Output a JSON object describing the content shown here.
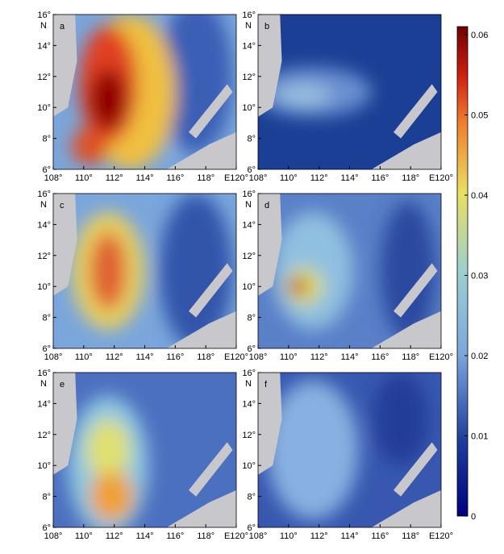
{
  "panels": [
    {
      "label": "a"
    },
    {
      "label": "b"
    },
    {
      "label": "c"
    },
    {
      "label": "d"
    },
    {
      "label": "e"
    },
    {
      "label": "f"
    }
  ],
  "x_ticks": [
    "108°",
    "110°",
    "112°",
    "114°",
    "116°",
    "118°",
    "E120°"
  ],
  "y_ticks": [
    "6°",
    "8°",
    "10°",
    "12°",
    "14°",
    "16°"
  ],
  "y_unit": "N",
  "colorbar": {
    "lim": [
      0,
      0.06
    ],
    "ticks": [
      0,
      0.01,
      0.02,
      0.03,
      0.04,
      0.05,
      0.06
    ]
  }
}
